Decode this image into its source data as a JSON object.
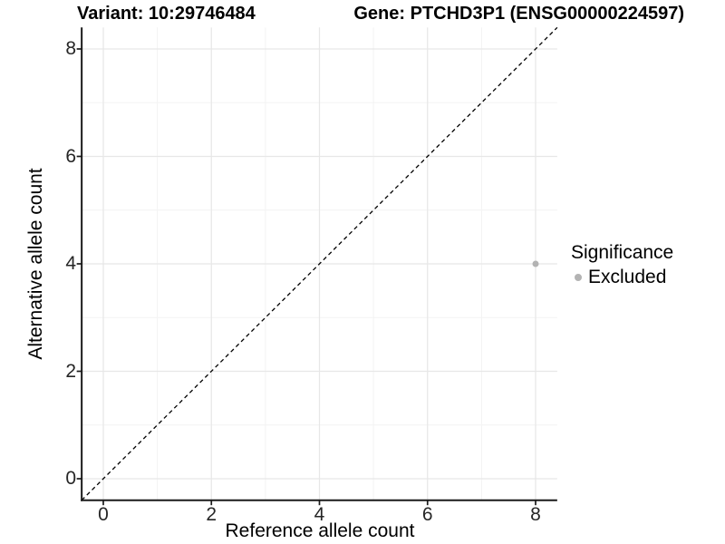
{
  "figure": {
    "title_left": "Variant: 10:29746484",
    "title_right": "Gene: PTCHD3P1 (ENSG00000224597)"
  },
  "chart_data": {
    "type": "scatter",
    "title_left": "Variant: 10:29746484",
    "title_right": "Gene: PTCHD3P1 (ENSG00000224597)",
    "xlabel": "Reference allele count",
    "ylabel": "Alternative allele count",
    "xlim": [
      -0.4,
      8.4
    ],
    "ylim": [
      -0.4,
      8.4
    ],
    "x_ticks": [
      0,
      2,
      4,
      6,
      8
    ],
    "y_ticks": [
      0,
      2,
      4,
      6,
      8
    ],
    "x_minor_ticks": [
      1,
      3,
      5,
      7
    ],
    "y_minor_ticks": [
      1,
      3,
      5,
      7
    ],
    "grid": "major+minor",
    "reference_line": {
      "kind": "identity",
      "style": "dashed",
      "color": "#000000"
    },
    "series": [
      {
        "name": "Excluded",
        "color": "#b3b3b3",
        "points": [
          {
            "x": 8,
            "y": 4
          }
        ]
      }
    ],
    "legend": {
      "title": "Significance",
      "position": "right",
      "entries": [
        {
          "label": "Excluded",
          "color": "#b3b3b3"
        }
      ]
    },
    "colors": {
      "background": "#ffffff",
      "grid_major": "#e7e7e7",
      "grid_minor": "#f3f3f3",
      "axis_line": "#1a1a1a",
      "tick_text": "#262626",
      "point": "#b3b3b3",
      "dashed_line": "#000000"
    }
  }
}
